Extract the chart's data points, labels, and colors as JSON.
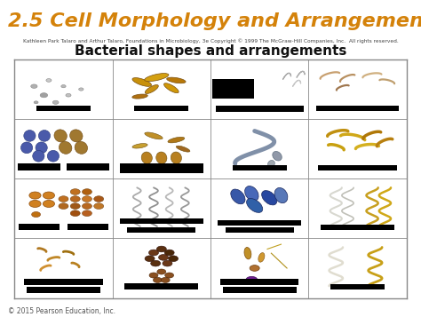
{
  "title": "2.5 Cell Morphology and Arrangements",
  "title_color": "#d4820a",
  "title_fontsize": 16,
  "top_bar_color": "#7b4f8e",
  "subtitle": "Bacterial shapes and arrangements",
  "subtitle_fontsize": 11,
  "subtitle_color": "#111111",
  "credit_text": "Kathleen Park Talaro and Arthur Talaro, Foundations in Microbiology, 3e Copyright © 1999 The McGraw-Hill Companies, Inc.  All rights reserved.",
  "credit_fontsize": 4.2,
  "footer_text": "© 2015 Pearson Education, Inc.",
  "footer_fontsize": 5.5,
  "bg_color": "#ffffff",
  "content_bg": "#f0ede8",
  "grid_line_color": "#888888",
  "n_cols": 4,
  "n_rows": 4,
  "black_bar_color": "#000000"
}
